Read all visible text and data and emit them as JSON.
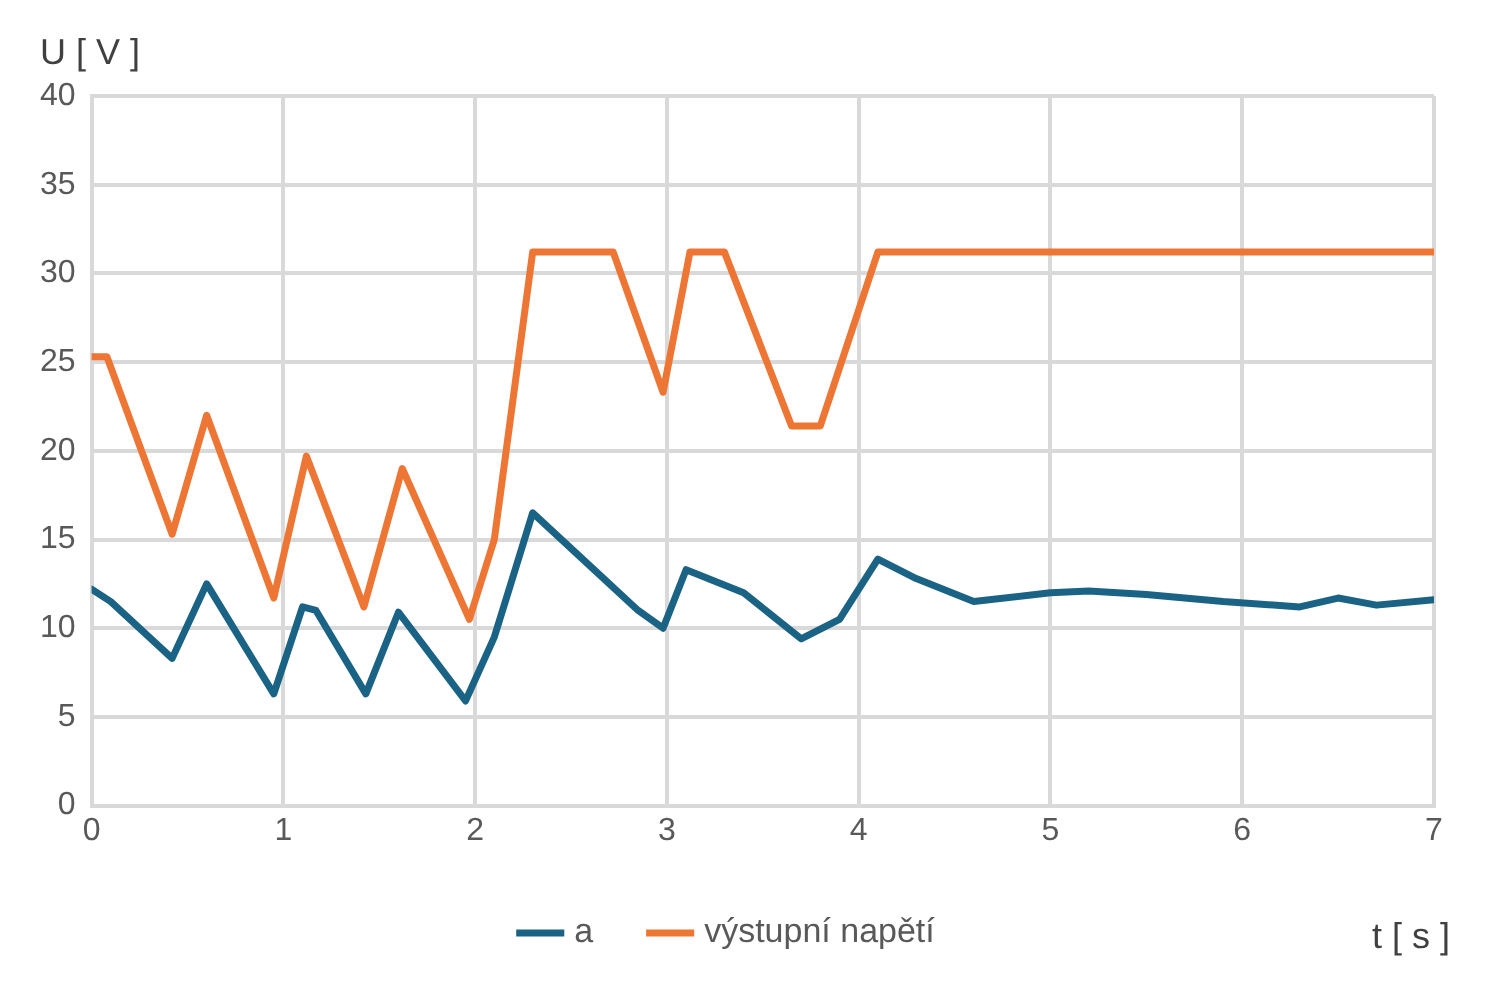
{
  "chart_data": {
    "type": "line",
    "xlabel": "t [ s ]",
    "ylabel": "U [ V ]",
    "xlim": [
      0,
      7
    ],
    "xticks": [
      0,
      1,
      2,
      3,
      4,
      5,
      6,
      7
    ],
    "ylim": [
      0,
      40
    ],
    "yticks": [
      0,
      5,
      10,
      15,
      20,
      25,
      30,
      35,
      40
    ],
    "grid": true,
    "legend": "bottom",
    "marker": "none",
    "line_style": "solid",
    "series": [
      {
        "name": "a",
        "color": "#1a6385",
        "x": [
          0,
          0.1,
          0.42,
          0.6,
          0.95,
          1.1,
          1.17,
          1.43,
          1.6,
          1.95,
          2.1,
          2.3,
          2.6,
          2.85,
          2.98,
          3.1,
          3.4,
          3.7,
          3.9,
          4.1,
          4.3,
          4.6,
          5,
          5.2,
          5.5,
          5.9,
          6.3,
          6.5,
          6.7,
          7
        ],
        "values": [
          12.2,
          11.5,
          8.3,
          12.5,
          6.3,
          11.2,
          11,
          6.3,
          10.9,
          5.9,
          9.5,
          16.5,
          13.5,
          11,
          10,
          13.3,
          12,
          9.4,
          10.5,
          13.9,
          12.8,
          11.5,
          12,
          12.1,
          11.9,
          11.5,
          11.2,
          11.7,
          11.3,
          11.6
        ]
      },
      {
        "name": "výstupní napětí",
        "color": "#ed7634",
        "x": [
          0,
          0.08,
          0.42,
          0.6,
          0.95,
          1.12,
          1.42,
          1.62,
          1.97,
          2.1,
          2.3,
          2.72,
          2.98,
          3.12,
          3.3,
          3.65,
          3.8,
          4.1,
          7
        ],
        "values": [
          25.3,
          25.3,
          15.3,
          22,
          11.7,
          19.7,
          11.2,
          19,
          10.5,
          15,
          31.2,
          31.2,
          23.3,
          31.2,
          31.2,
          21.4,
          21.4,
          31.2,
          31.2
        ]
      }
    ]
  }
}
